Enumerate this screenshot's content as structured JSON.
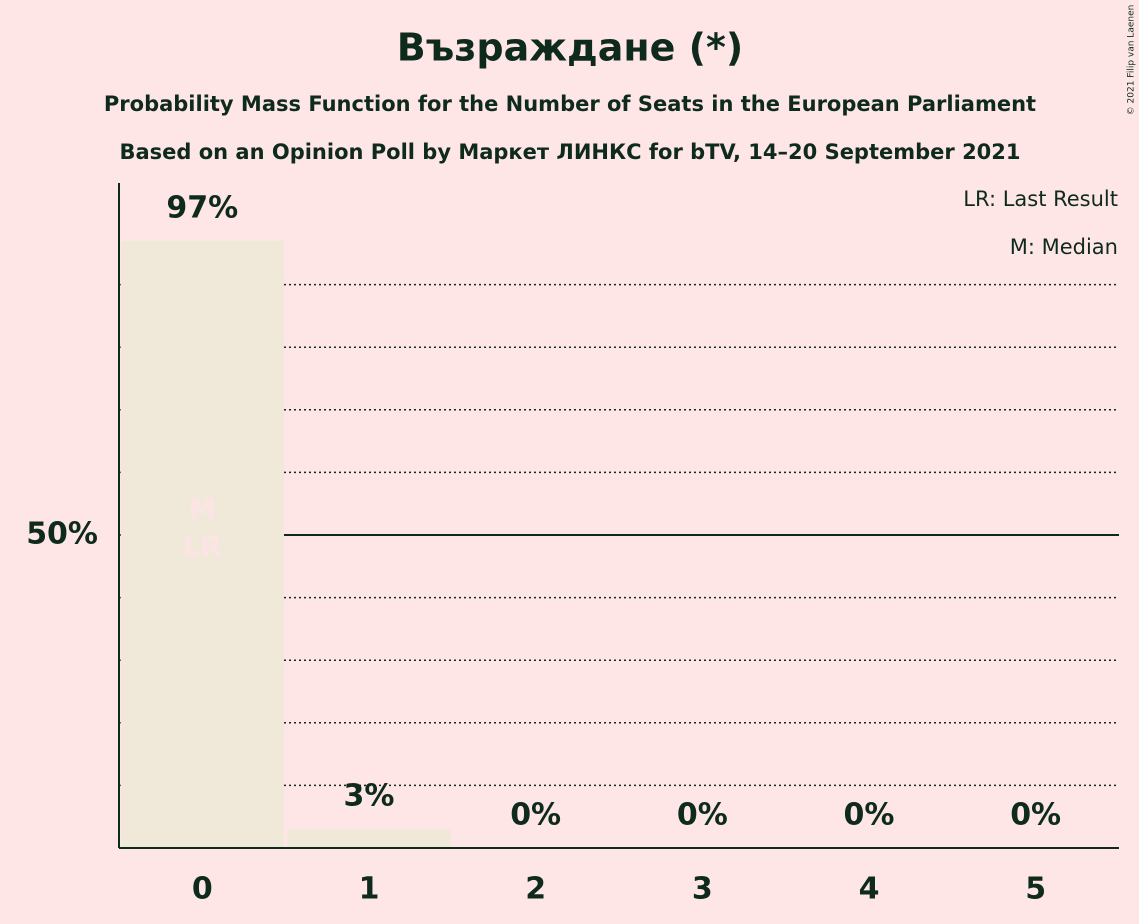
{
  "chart_data": {
    "type": "bar",
    "title": "Възраждане (*)",
    "subtitle": [
      "Probability Mass Function for the Number of Seats in the European Parliament",
      "Based on an Opinion Poll by Маркет ЛИНКС for bTV, 14–20 September 2021"
    ],
    "categories": [
      "0",
      "1",
      "2",
      "3",
      "4",
      "5"
    ],
    "values": [
      97,
      3,
      0,
      0,
      0,
      0
    ],
    "value_labels": [
      "97%",
      "3%",
      "0%",
      "0%",
      "0%",
      "0%"
    ],
    "color": "#f0e9d9",
    "ylim": [
      0,
      100
    ],
    "yticks": [
      {
        "value": 50,
        "label": "50%"
      }
    ],
    "minor_gridlines": [
      10,
      20,
      30,
      40,
      60,
      70,
      80,
      90
    ],
    "grid": true,
    "median": 0,
    "median_label": "M",
    "last_result": 0,
    "last_result_label": "LR",
    "legend": [
      "LR: Last Result",
      "M: Median"
    ],
    "copyright": "© 2021 Filip van Laenen"
  }
}
